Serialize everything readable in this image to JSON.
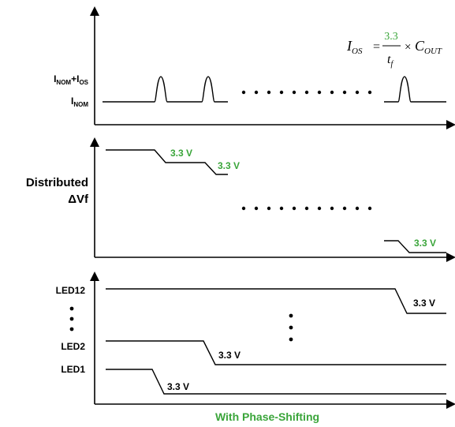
{
  "colors": {
    "accent": "#3aa53a",
    "line": "#000000"
  },
  "top_panel": {
    "y_label_high": {
      "main": "I",
      "sub_a": "NOM",
      "plus": "+I",
      "sub_b": "OS"
    },
    "y_label_low": {
      "main": "I",
      "sub": "NOM"
    },
    "formula": {
      "lhs": "I",
      "lhs_sub": "OS",
      "equals": "=",
      "numerator": "3.3",
      "denominator": "t",
      "denominator_sub": "f",
      "times": "×",
      "rhs": "C",
      "rhs_sub": "OUT"
    }
  },
  "middle_panel": {
    "y_label_line1": "Distributed",
    "y_label_line2": "ΔVf",
    "step_labels": [
      "3.3 V",
      "3.3 V",
      "3.3 V"
    ]
  },
  "bottom_panel": {
    "led_labels": {
      "led12": "LED12",
      "led2": "LED2",
      "led1": "LED1"
    },
    "step_labels": [
      "3.3 V",
      "3.3 V",
      "3.3 V"
    ]
  },
  "caption": "With Phase-Shifting"
}
